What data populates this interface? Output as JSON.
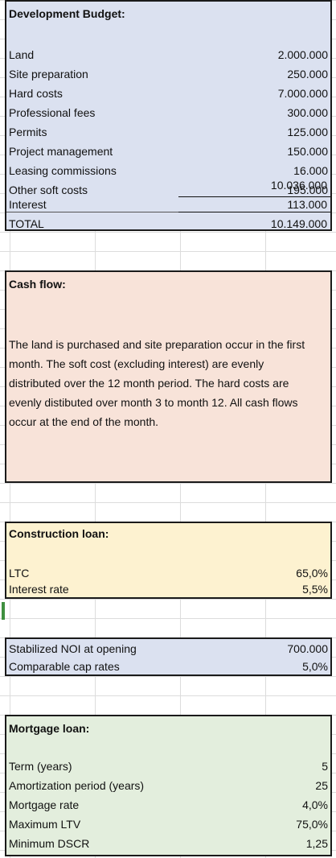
{
  "budget": {
    "header": "Development Budget:",
    "items": [
      {
        "label": "Land",
        "value": "2.000.000"
      },
      {
        "label": "Site preparation",
        "value": "250.000"
      },
      {
        "label": "Hard costs",
        "value": "7.000.000"
      },
      {
        "label": "Professional fees",
        "value": "300.000"
      },
      {
        "label": "Permits",
        "value": "125.000"
      },
      {
        "label": "Project management",
        "value": "150.000"
      },
      {
        "label": "Leasing commissions",
        "value": "16.000"
      },
      {
        "label": "Other soft costs",
        "value": "195.000"
      }
    ],
    "subtotal": "10.036.000",
    "interest": {
      "label": "Interest",
      "value": "113.000"
    },
    "total": {
      "label": "TOTAL",
      "value": "10.149.000"
    }
  },
  "cash_flow": {
    "header": "Cash flow:",
    "text": "The land is purchased and site preparation occur in the first month.  The soft cost (excluding interest) are evenly distributed over the 12 month period.  The hard costs  are evenly distibuted over month 3 to month 12.  All cash flows occur at the end of the month."
  },
  "construction_loan": {
    "header": "Construction loan:",
    "items": [
      {
        "label": "LTC",
        "value": "65,0%"
      },
      {
        "label": "Interest rate",
        "value": "5,5%"
      }
    ]
  },
  "stabilized": {
    "items": [
      {
        "label": "Stabilized NOI at opening",
        "value": "700.000"
      },
      {
        "label": "Comparable cap rates",
        "value": "5,0%"
      }
    ]
  },
  "mortgage_loan": {
    "header": "Mortgage loan:",
    "items": [
      {
        "label": "Term (years)",
        "value": "5"
      },
      {
        "label": "Amortization period (years)",
        "value": "25"
      },
      {
        "label": "Mortgage rate",
        "value": "4,0%"
      },
      {
        "label": "Maximum LTV",
        "value": "75,0%"
      },
      {
        "label": "Minimum DSCR",
        "value": "1,25"
      }
    ]
  }
}
